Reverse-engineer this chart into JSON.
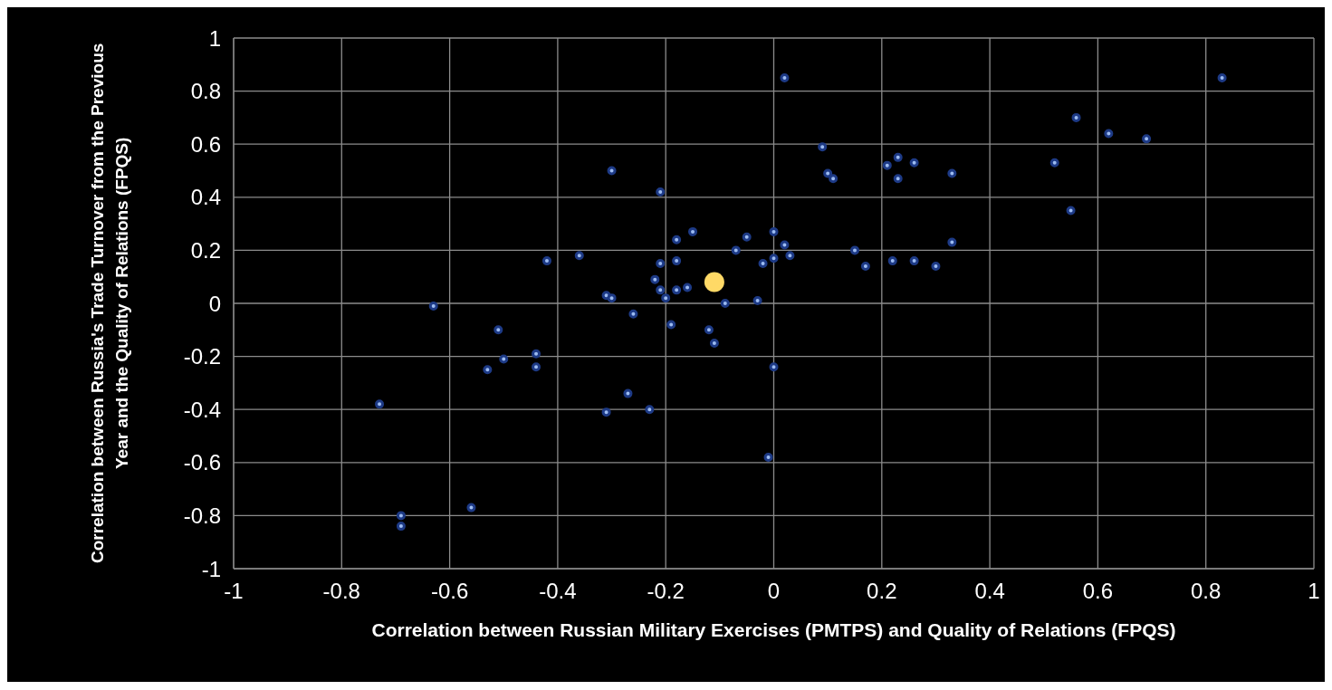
{
  "chart_data": {
    "type": "scatter",
    "xlabel": "Correlation between Russian Military Exercises (PMTPS) and Quality of Relations (FPQS)",
    "ylabel": "Correlation between Russia's Trade Turnover from the Previous Year and the Quality of Relations (FPQS)",
    "xlim": [
      -1,
      1
    ],
    "xticks": [
      -1,
      -0.8,
      -0.6,
      -0.4,
      -0.2,
      0,
      0.2,
      0.4,
      0.6,
      0.8,
      1
    ],
    "ylim": [
      -1,
      1
    ],
    "yticks": [
      -1,
      -0.8,
      -0.6,
      -0.4,
      -0.2,
      0,
      0.2,
      0.4,
      0.6,
      0.8,
      1
    ],
    "grid": true,
    "marker": "circle",
    "series": [
      {
        "color": "#9dbcf2",
        "x": [
          0.02,
          0.83,
          0.62,
          0.56,
          0.69,
          0.52,
          0.55,
          0.09,
          0.1,
          0.11,
          0.21,
          0.23,
          0.26,
          0.23,
          0.33,
          0.33,
          0.15,
          0.17,
          0.22,
          0.26,
          0.3,
          0.0,
          0.02,
          0.03,
          0.0,
          -0.02,
          -0.03,
          -0.05,
          -0.07,
          -0.09,
          -0.12,
          -0.11,
          0.0,
          -0.01,
          -0.3,
          -0.21,
          -0.15,
          -0.18,
          -0.21,
          -0.18,
          -0.22,
          -0.21,
          -0.18,
          -0.2,
          -0.16,
          -0.31,
          -0.3,
          -0.26,
          -0.19,
          -0.36,
          -0.42,
          -0.63,
          -0.51,
          -0.5,
          -0.44,
          -0.44,
          -0.53,
          -0.73,
          -0.27,
          -0.31,
          -0.23,
          -0.56,
          -0.69,
          -0.69
        ],
        "values": [
          0.85,
          0.85,
          0.64,
          0.7,
          0.62,
          0.53,
          0.35,
          0.59,
          0.49,
          0.47,
          0.52,
          0.55,
          0.53,
          0.47,
          0.49,
          0.23,
          0.2,
          0.14,
          0.16,
          0.16,
          0.14,
          0.27,
          0.22,
          0.18,
          0.17,
          0.15,
          0.01,
          0.25,
          0.2,
          0.0,
          -0.1,
          -0.15,
          -0.24,
          -0.58,
          0.5,
          0.42,
          0.27,
          0.24,
          0.15,
          0.16,
          0.09,
          0.05,
          0.05,
          0.02,
          0.06,
          0.03,
          0.02,
          -0.04,
          -0.08,
          0.18,
          0.16,
          -0.01,
          -0.1,
          -0.21,
          -0.19,
          -0.24,
          -0.25,
          -0.38,
          -0.34,
          -0.41,
          -0.4,
          -0.77,
          -0.8,
          -0.84
        ]
      },
      {
        "color": "#ffd966",
        "x": [
          -0.11
        ],
        "values": [
          0.08
        ]
      }
    ]
  }
}
